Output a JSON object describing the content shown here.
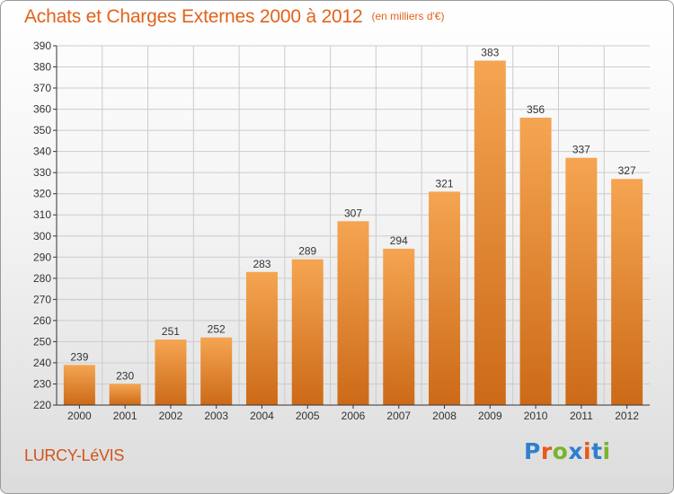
{
  "title": "Achats et Charges Externes 2000 à 2012",
  "subtitle": "(en milliers d'€)",
  "place": "LURCY-LéVIS",
  "logo": {
    "text": "Proxiti",
    "letter_colors": [
      "#2f7fd1",
      "#e8591a",
      "#7ab32e",
      "#2f7fd1",
      "#e8591a",
      "#2f7fd1",
      "#7ab32e"
    ]
  },
  "colors": {
    "title": "#e2621b",
    "bar_top": "#f5a552",
    "bar_bottom": "#cc6a17",
    "axis": "#333333",
    "grid": "#cccccc"
  },
  "chart_data": {
    "type": "bar",
    "categories": [
      "2000",
      "2001",
      "2002",
      "2003",
      "2004",
      "2005",
      "2006",
      "2007",
      "2008",
      "2009",
      "2010",
      "2011",
      "2012"
    ],
    "values": [
      239,
      230,
      251,
      252,
      283,
      289,
      307,
      294,
      321,
      383,
      356,
      337,
      327
    ],
    "ylim": [
      220,
      390
    ],
    "yticks": [
      220,
      230,
      240,
      250,
      260,
      270,
      280,
      290,
      300,
      310,
      320,
      330,
      340,
      350,
      360,
      370,
      380,
      390
    ],
    "grid": true,
    "data_labels": true
  }
}
